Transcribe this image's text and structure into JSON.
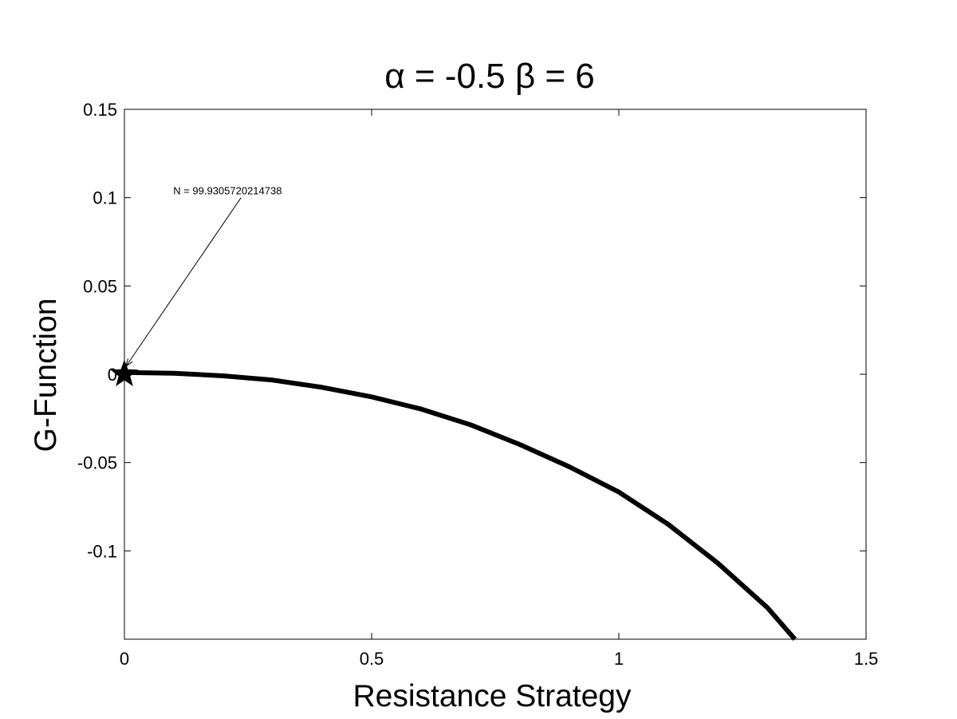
{
  "chart_data": {
    "type": "line",
    "title": "α = -0.5 β = 6",
    "xlabel": "Resistance Strategy",
    "ylabel": "G-Function",
    "xlim": [
      0,
      1.5
    ],
    "ylim": [
      -0.15,
      0.15
    ],
    "xticks": [
      0,
      0.5,
      1,
      1.5
    ],
    "xtick_labels": [
      "0",
      "0.5",
      "1",
      "1.5"
    ],
    "yticks": [
      0.15,
      0.1,
      0.05,
      0,
      -0.05,
      -0.1
    ],
    "ytick_labels": [
      "0.15",
      "0.1",
      "0.05",
      "0",
      "-0.05",
      "-0.1"
    ],
    "grid": false,
    "series": [
      {
        "x": [
          0,
          0.1,
          0.2,
          0.3,
          0.4,
          0.5,
          0.6,
          0.7,
          0.8,
          0.9,
          1.0,
          1.1,
          1.2,
          1.3,
          1.356
        ],
        "y": [
          0.001,
          0.0006,
          -0.0009,
          -0.0033,
          -0.0074,
          -0.0128,
          -0.0197,
          -0.0286,
          -0.0398,
          -0.0524,
          -0.0667,
          -0.085,
          -0.1069,
          -0.132,
          -0.15
        ],
        "color": "#000000"
      }
    ],
    "marker": {
      "x": 0,
      "y": 0,
      "shape": "star"
    },
    "annotation": {
      "text": "N = 99.9305720214738",
      "x": 0.16,
      "y": 0.1,
      "arrow_to": {
        "x": 0,
        "y": 0
      }
    }
  }
}
